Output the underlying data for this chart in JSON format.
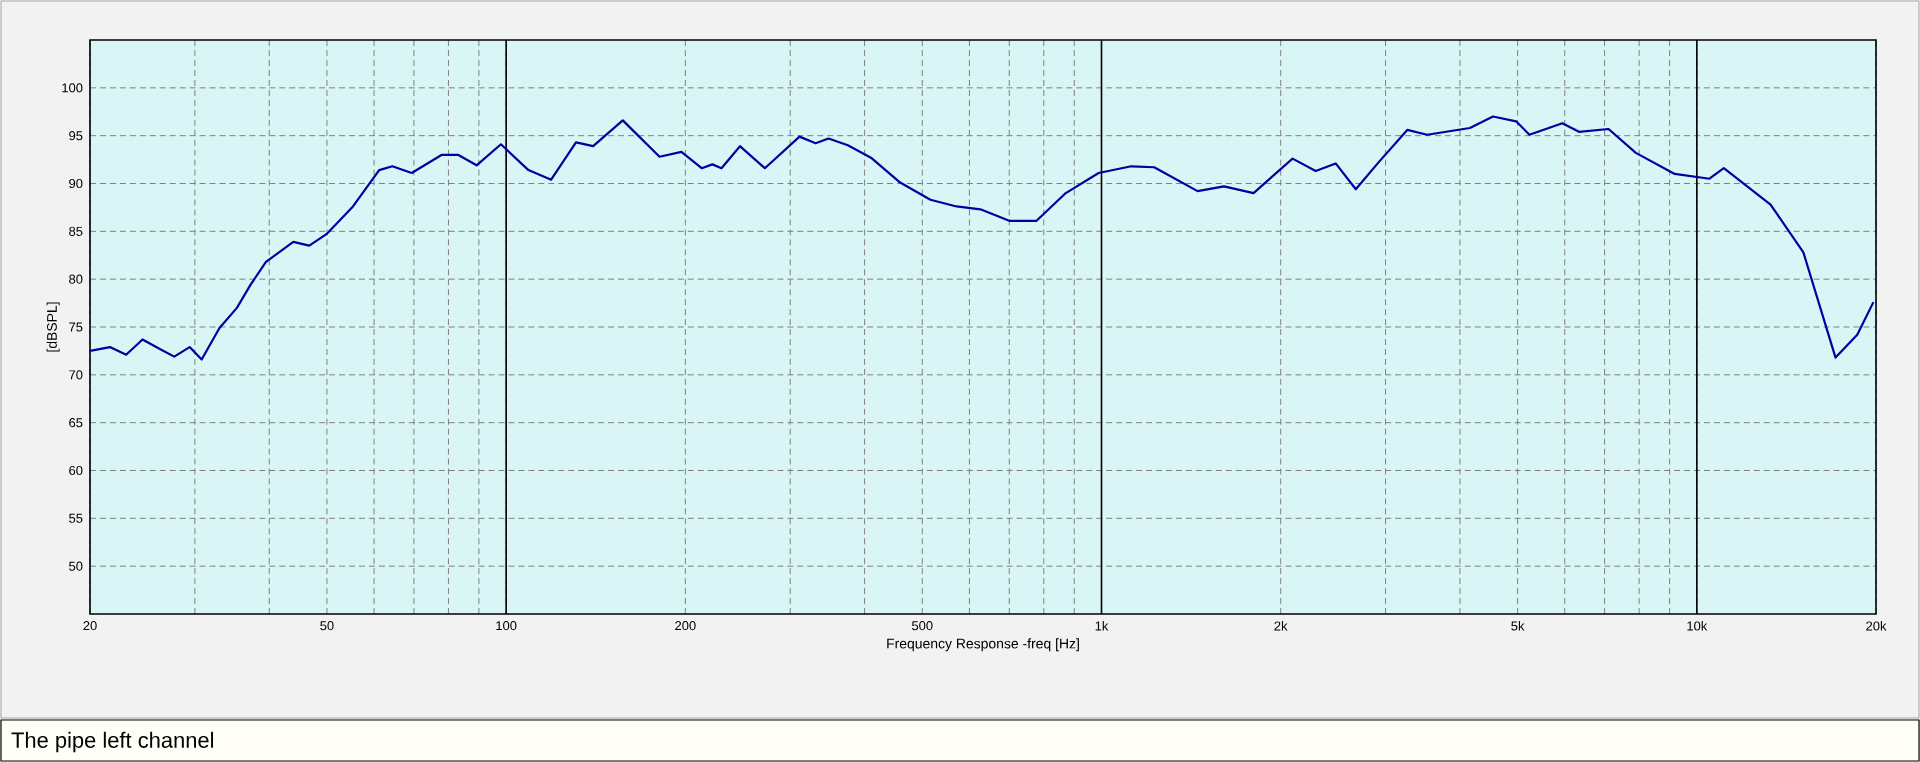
{
  "chart_data": {
    "type": "line",
    "xlabel": "Frequency Response -freq [Hz]",
    "ylabel": "[dBSPL]",
    "annotations": [
      "The pipe left channel"
    ],
    "log": "x",
    "grid": true,
    "marker": "none",
    "line_style": "solid",
    "xlim": [
      20,
      20000
    ],
    "ylim": [
      45,
      105
    ],
    "xticks": [
      20,
      {
        "value": 30,
        "label": null
      },
      {
        "value": 40,
        "label": null
      },
      50,
      {
        "value": 60,
        "label": null
      },
      {
        "value": 70,
        "label": null
      },
      {
        "value": 80,
        "label": null
      },
      {
        "value": 90,
        "label": null
      },
      100,
      200,
      {
        "value": 300,
        "label": null
      },
      {
        "value": 400,
        "label": null
      },
      500,
      {
        "value": 600,
        "label": null
      },
      {
        "value": 700,
        "label": null
      },
      {
        "value": 800,
        "label": null
      },
      {
        "value": 900,
        "label": null
      },
      {
        "value": 1000,
        "label": "1k"
      },
      {
        "value": 2000,
        "label": "2k"
      },
      {
        "value": 3000,
        "label": null
      },
      {
        "value": 4000,
        "label": null
      },
      {
        "value": 5000,
        "label": "5k"
      },
      {
        "value": 6000,
        "label": null
      },
      {
        "value": 7000,
        "label": null
      },
      {
        "value": 8000,
        "label": null
      },
      {
        "value": 9000,
        "label": null
      },
      {
        "value": 10000,
        "label": "10k"
      },
      {
        "value": 20000,
        "label": "20k"
      }
    ],
    "yticks": [
      50,
      55,
      60,
      65,
      70,
      75,
      80,
      85,
      90,
      95,
      100
    ],
    "x": [
      20,
      21.6,
      23.0,
      24.5,
      26.2,
      27.7,
      29.4,
      30.8,
      33.0,
      35.3,
      37.2,
      39.5,
      43.9,
      46.7,
      49.9,
      55.3,
      61.2,
      64.4,
      69.4,
      78.0,
      83.0,
      89.2,
      98.0,
      109,
      119,
      131,
      140,
      157,
      181,
      197,
      213,
      222,
      230,
      247,
      272,
      311,
      331,
      348,
      375,
      410,
      459,
      516,
      571,
      626,
      700,
      778,
      871,
      989,
      1122,
      1226,
      1450,
      1606,
      1801,
      2094,
      2290,
      2474,
      2674,
      2910,
      3263,
      3524,
      4158,
      4546,
      4971,
      5233,
      5944,
      6339,
      7108,
      7900,
      9180,
      10500,
      11100,
      13300,
      15100,
      17100,
      18600,
      19800
    ],
    "series": [
      {
        "color": "#0000a0",
        "values": [
          72.5,
          72.9,
          72.1,
          73.7,
          72.7,
          71.9,
          72.9,
          71.6,
          74.9,
          77.0,
          79.4,
          81.8,
          83.9,
          83.5,
          84.7,
          87.6,
          91.4,
          91.8,
          91.1,
          93.0,
          93.0,
          91.9,
          94.1,
          91.4,
          90.4,
          94.3,
          93.9,
          96.6,
          92.8,
          93.3,
          91.6,
          92.0,
          91.6,
          93.9,
          91.6,
          94.9,
          94.2,
          94.7,
          94.0,
          92.7,
          90.1,
          88.3,
          87.6,
          87.3,
          86.1,
          86.1,
          89.0,
          91.1,
          91.8,
          91.7,
          89.2,
          89.7,
          89.0,
          92.6,
          91.3,
          92.1,
          89.4,
          92.1,
          95.6,
          95.1,
          95.8,
          97.0,
          96.5,
          95.1,
          96.3,
          95.4,
          95.7,
          93.2,
          91.0,
          90.5,
          91.6,
          87.8,
          82.8,
          71.8,
          74.2,
          77.6
        ]
      }
    ]
  }
}
